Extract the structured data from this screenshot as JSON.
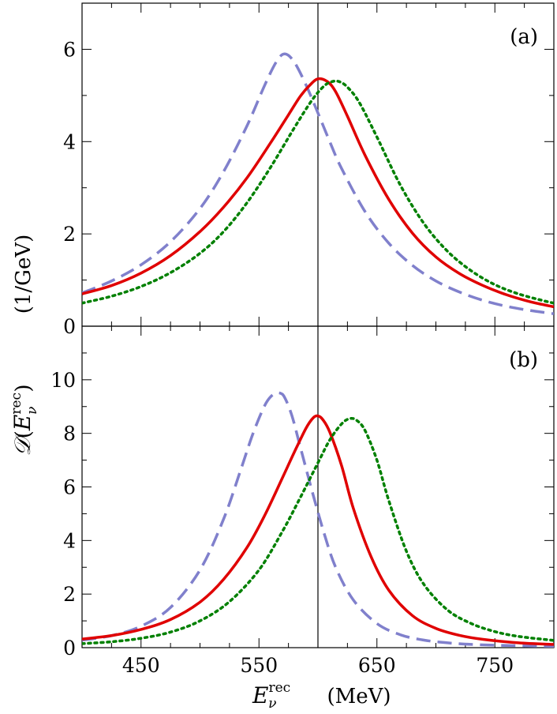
{
  "chart_data": [
    {
      "panel": "(a)",
      "type": "line",
      "xlim": [
        400,
        800
      ],
      "ylim": [
        0,
        7
      ],
      "xticks": [
        450,
        550,
        650,
        750
      ],
      "yticks": [
        0,
        2,
        4,
        6
      ],
      "reference_line_x": 600,
      "series": [
        {
          "color": "#8080cc",
          "dash": "dashed",
          "x": [
            400,
            425,
            450,
            475,
            500,
            520,
            540,
            555,
            565,
            572,
            580,
            590,
            600,
            610,
            620,
            640,
            660,
            680,
            700,
            720,
            740,
            760,
            780,
            800
          ],
          "values": [
            0.72,
            0.98,
            1.33,
            1.83,
            2.55,
            3.35,
            4.35,
            5.23,
            5.74,
            5.9,
            5.72,
            5.22,
            4.62,
            4.0,
            3.42,
            2.48,
            1.8,
            1.32,
            0.98,
            0.74,
            0.56,
            0.43,
            0.34,
            0.27
          ]
        },
        {
          "color": "#e00000",
          "dash": "solid",
          "x": [
            400,
            425,
            450,
            475,
            500,
            520,
            540,
            560,
            575,
            585,
            593,
            600,
            608,
            615,
            625,
            640,
            660,
            680,
            700,
            720,
            740,
            760,
            780,
            800
          ],
          "values": [
            0.7,
            0.88,
            1.15,
            1.53,
            2.05,
            2.58,
            3.22,
            3.98,
            4.58,
            4.98,
            5.22,
            5.36,
            5.3,
            5.08,
            4.55,
            3.7,
            2.75,
            2.02,
            1.5,
            1.14,
            0.88,
            0.68,
            0.53,
            0.42
          ]
        },
        {
          "color": "#008000",
          "dash": "dotted",
          "x": [
            400,
            425,
            450,
            475,
            500,
            520,
            540,
            560,
            580,
            595,
            605,
            612,
            618,
            625,
            635,
            650,
            670,
            690,
            710,
            730,
            750,
            770,
            790,
            800
          ],
          "values": [
            0.5,
            0.65,
            0.86,
            1.16,
            1.58,
            2.05,
            2.68,
            3.45,
            4.3,
            4.9,
            5.2,
            5.3,
            5.3,
            5.18,
            4.85,
            4.1,
            3.05,
            2.22,
            1.62,
            1.2,
            0.9,
            0.7,
            0.56,
            0.5
          ]
        }
      ]
    },
    {
      "panel": "(b)",
      "type": "line",
      "xlim": [
        400,
        800
      ],
      "ylim": [
        0,
        12
      ],
      "xticks": [
        450,
        550,
        650,
        750
      ],
      "xtick_labels": [
        "450",
        "550",
        "650",
        "750"
      ],
      "yticks": [
        0,
        2,
        4,
        6,
        8,
        10
      ],
      "reference_line_x": 600,
      "series": [
        {
          "color": "#8080cc",
          "dash": "dashed",
          "x": [
            400,
            425,
            450,
            475,
            500,
            520,
            535,
            545,
            555,
            562,
            568,
            572,
            578,
            585,
            595,
            605,
            615,
            630,
            650,
            670,
            690,
            710,
            730,
            760,
            800
          ],
          "values": [
            0.28,
            0.45,
            0.8,
            1.5,
            2.9,
            4.8,
            6.7,
            8.0,
            9.05,
            9.45,
            9.5,
            9.32,
            8.65,
            7.5,
            5.85,
            4.3,
            3.0,
            1.78,
            0.9,
            0.48,
            0.28,
            0.18,
            0.12,
            0.08,
            0.05
          ]
        },
        {
          "color": "#e00000",
          "dash": "solid",
          "x": [
            400,
            425,
            450,
            475,
            500,
            520,
            540,
            555,
            570,
            580,
            590,
            596,
            600,
            604,
            610,
            620,
            630,
            645,
            660,
            680,
            700,
            720,
            740,
            770,
            800
          ],
          "values": [
            0.32,
            0.45,
            0.68,
            1.05,
            1.7,
            2.55,
            3.75,
            4.95,
            6.35,
            7.3,
            8.2,
            8.58,
            8.65,
            8.52,
            8.05,
            6.8,
            5.2,
            3.4,
            2.15,
            1.2,
            0.72,
            0.46,
            0.31,
            0.18,
            0.12
          ]
        },
        {
          "color": "#008000",
          "dash": "dotted",
          "x": [
            400,
            425,
            450,
            475,
            500,
            525,
            550,
            570,
            585,
            600,
            610,
            620,
            627,
            633,
            640,
            650,
            660,
            675,
            690,
            710,
            730,
            750,
            770,
            800
          ],
          "values": [
            0.15,
            0.22,
            0.35,
            0.58,
            1.0,
            1.72,
            2.9,
            4.35,
            5.6,
            6.9,
            7.75,
            8.35,
            8.55,
            8.48,
            8.1,
            7.0,
            5.5,
            3.6,
            2.35,
            1.4,
            0.9,
            0.6,
            0.42,
            0.27
          ]
        }
      ]
    }
  ],
  "shared": {
    "ylabel": "(1/GeV)",
    "xlabel": "(MeV)"
  }
}
